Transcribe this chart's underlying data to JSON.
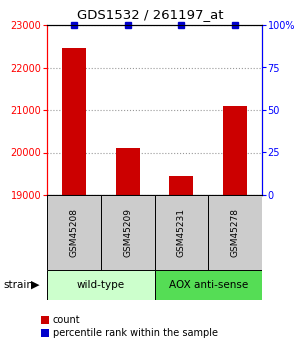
{
  "title": "GDS1532 / 261197_at",
  "samples": [
    "GSM45208",
    "GSM45209",
    "GSM45231",
    "GSM45278"
  ],
  "counts": [
    22450,
    20100,
    19450,
    21100
  ],
  "ylim_left": [
    19000,
    23000
  ],
  "ylim_right": [
    0,
    100
  ],
  "yticks_left": [
    19000,
    20000,
    21000,
    22000,
    23000
  ],
  "yticks_right": [
    0,
    25,
    50,
    75,
    100
  ],
  "yticklabels_right": [
    "0",
    "25",
    "50",
    "75",
    "100%"
  ],
  "bar_color": "#cc0000",
  "percentile_color": "#0000cc",
  "groups": [
    {
      "label": "wild-type",
      "indices": [
        0,
        1
      ],
      "color": "#ccffcc"
    },
    {
      "label": "AOX anti-sense",
      "indices": [
        2,
        3
      ],
      "color": "#55dd55"
    }
  ],
  "strain_label": "strain",
  "legend_count_label": "count",
  "legend_percentile_label": "percentile rank within the sample",
  "box_gray": "#cccccc",
  "background": "#ffffff"
}
